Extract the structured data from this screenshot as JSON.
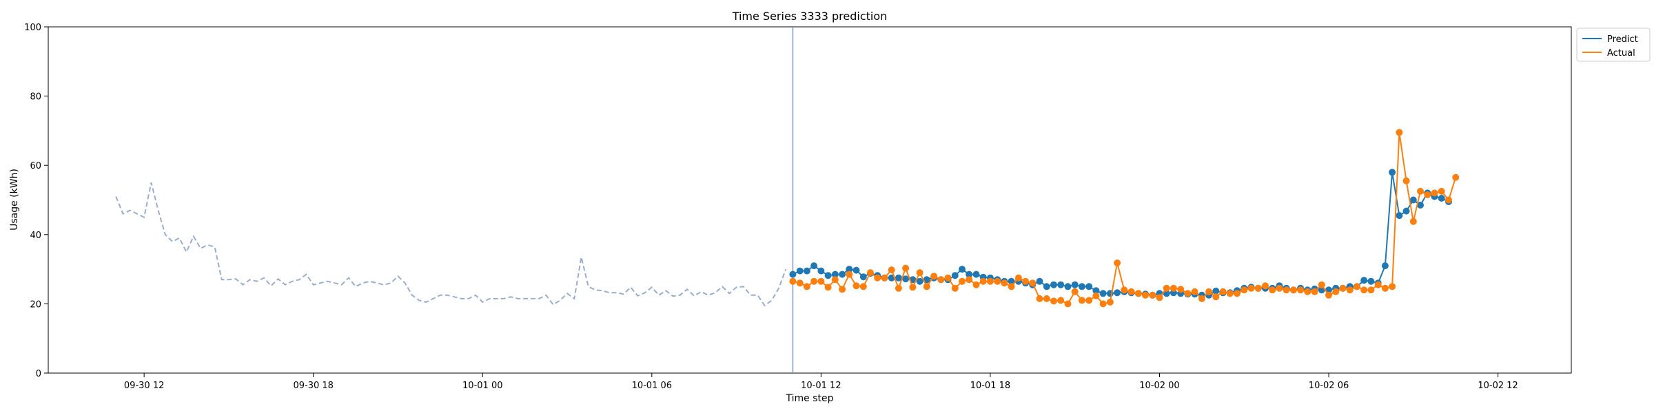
{
  "chart_data": {
    "type": "line",
    "title": "Time Series 3333 prediction",
    "xlabel": "Time step",
    "ylabel": "Usage (kWh)",
    "ylim": [
      0,
      100
    ],
    "xlim": [
      "2023-09-30 08:36",
      "2023-10-02 14:36"
    ],
    "x_ticks": [
      {
        "t": "2023-09-30 12:00",
        "label": "09-30 12"
      },
      {
        "t": "2023-09-30 18:00",
        "label": "09-30 18"
      },
      {
        "t": "2023-10-01 00:00",
        "label": "10-01 00"
      },
      {
        "t": "2023-10-01 06:00",
        "label": "10-01 06"
      },
      {
        "t": "2023-10-01 12:00",
        "label": "10-01 12"
      },
      {
        "t": "2023-10-01 18:00",
        "label": "10-01 18"
      },
      {
        "t": "2023-10-02 00:00",
        "label": "10-02 00"
      },
      {
        "t": "2023-10-02 06:00",
        "label": "10-02 06"
      },
      {
        "t": "2023-10-02 12:00",
        "label": "10-02 12"
      }
    ],
    "y_ticks": [
      0,
      20,
      40,
      60,
      80,
      100
    ],
    "grid": false,
    "legend_position": "top-right-outside",
    "split_time": "2023-10-01 11:00",
    "history": {
      "start": "2023-09-30 11:00",
      "step_minutes": 15,
      "color": "#9aaecb",
      "values": [
        51,
        46,
        47,
        46,
        45,
        55,
        47,
        40,
        38,
        39,
        35,
        39.5,
        36,
        37,
        36.5,
        27,
        27,
        27.2,
        25.5,
        27,
        26.5,
        27.5,
        25.2,
        27.2,
        25.5,
        26.5,
        27,
        28.5,
        25.5,
        26,
        26.5,
        26,
        25.5,
        27.5,
        25,
        26,
        26.5,
        26,
        25.5,
        26,
        28,
        26,
        22.5,
        21,
        20.5,
        21.5,
        22.5,
        22.5,
        22,
        21.5,
        21.5,
        22.5,
        20.5,
        21.5,
        21.5,
        21.5,
        22,
        21.5,
        21.5,
        21.5,
        21.5,
        22.5,
        19.8,
        21,
        23,
        21.5,
        33.5,
        25,
        24,
        23.8,
        23.2,
        23.2,
        22.8,
        24.8,
        22.3,
        23.2,
        24.8,
        22.5,
        23.8,
        22.2,
        22.5,
        24.2,
        22.3,
        23.5,
        22.5,
        23.2,
        25,
        23,
        24.8,
        25,
        22.5,
        22.5,
        19.5,
        21,
        24.5,
        30
      ]
    },
    "series": [
      {
        "name": "Predict",
        "color": "#1f77b4",
        "start": "2023-10-01 11:00",
        "step_minutes": 15,
        "values": [
          28.5,
          29.5,
          29.5,
          31,
          29.5,
          28.2,
          28.5,
          28.5,
          30,
          29.7,
          27.8,
          28.8,
          28.2,
          27.5,
          27.5,
          27.5,
          27.2,
          27,
          26.5,
          27,
          27.5,
          27,
          27,
          28.2,
          30,
          28.5,
          28.5,
          27.7,
          27.5,
          27,
          26.5,
          26.5,
          26.5,
          26,
          25.5,
          26.5,
          25,
          25.5,
          25.5,
          25,
          25.5,
          25,
          25,
          23.8,
          23,
          23,
          23.2,
          23.5,
          23.2,
          23,
          22.8,
          22.5,
          23,
          23,
          23.2,
          23,
          22.8,
          22.8,
          22.5,
          22.5,
          23.7,
          23.2,
          23.2,
          23.8,
          24.5,
          24.8,
          24.5,
          24.5,
          24.5,
          25.2,
          24.5,
          24,
          24.5,
          24,
          24.3,
          24,
          24,
          24.5,
          24.5,
          25,
          25,
          26.8,
          26.5,
          26,
          31,
          58,
          45.5,
          46.8,
          50,
          48.5,
          52,
          51,
          50.5,
          49.5
        ]
      },
      {
        "name": "Actual",
        "color": "#ff7f0e",
        "start": "2023-10-01 11:00",
        "step_minutes": 15,
        "values": [
          26.5,
          26,
          25,
          26.5,
          26.5,
          24.8,
          27,
          24.2,
          28.5,
          25.2,
          25,
          29,
          27.5,
          27.5,
          29.8,
          24.5,
          30.3,
          24.8,
          29,
          25,
          28,
          27,
          27.5,
          24.5,
          26.5,
          27,
          25.5,
          26.5,
          26.5,
          26.5,
          26,
          25,
          27.5,
          26.5,
          26,
          21.5,
          21.5,
          20.8,
          21,
          20,
          23.5,
          21,
          21,
          22.3,
          20,
          20.5,
          31.8,
          24,
          23.5,
          23,
          22.5,
          22.5,
          21.8,
          24.5,
          24.5,
          24.2,
          23,
          23.5,
          21.5,
          23.5,
          22,
          23.5,
          23,
          23,
          24,
          24.5,
          24.5,
          25.2,
          24,
          24.5,
          24,
          24,
          24,
          23.5,
          23.5,
          25.5,
          22.5,
          23.5,
          24.5,
          24,
          25,
          24,
          24,
          25.5,
          24.5,
          25,
          69.5,
          55.5,
          43.8,
          52.5,
          51.5,
          52,
          52.5,
          50,
          56.5
        ]
      }
    ]
  }
}
